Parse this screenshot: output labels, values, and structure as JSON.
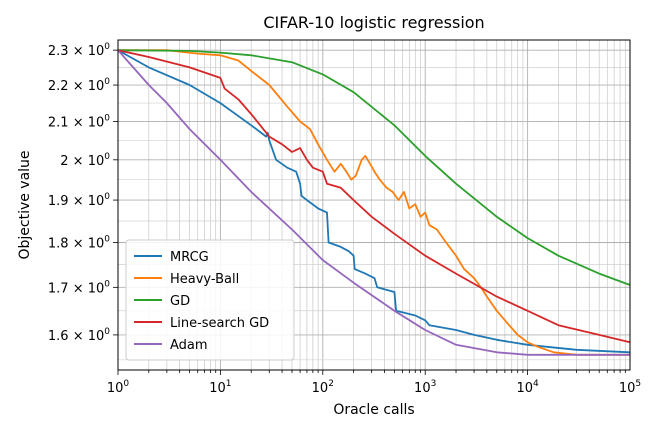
{
  "chart_data": {
    "type": "line",
    "title": "CIFAR-10 logistic regression",
    "xlabel": "Oracle calls",
    "ylabel": "Objective value",
    "xscale": "log",
    "yscale": "log",
    "xlim": [
      1,
      100000
    ],
    "ylim": [
      1.53,
      2.33
    ],
    "grid": "major and minor (both axes)",
    "legend_position": "lower-left",
    "x_ticks": [
      {
        "value": 1,
        "base": "10",
        "exp": "0"
      },
      {
        "value": 10,
        "base": "10",
        "exp": "1"
      },
      {
        "value": 100,
        "base": "10",
        "exp": "2"
      },
      {
        "value": 1000,
        "base": "10",
        "exp": "3"
      },
      {
        "value": 10000,
        "base": "10",
        "exp": "4"
      },
      {
        "value": 100000,
        "base": "10",
        "exp": "5"
      }
    ],
    "y_ticks": [
      {
        "value": 2.3,
        "mant": "2.3 × 10",
        "exp": "0"
      },
      {
        "value": 2.2,
        "mant": "2.2 × 10",
        "exp": "0"
      },
      {
        "value": 2.1,
        "mant": "2.1 × 10",
        "exp": "0"
      },
      {
        "value": 2.0,
        "mant": "2 × 10",
        "exp": "0"
      },
      {
        "value": 1.9,
        "mant": "1.9 × 10",
        "exp": "0"
      },
      {
        "value": 1.8,
        "mant": "1.8 × 10",
        "exp": "0"
      },
      {
        "value": 1.7,
        "mant": "1.7 × 10",
        "exp": "0"
      },
      {
        "value": 1.6,
        "mant": "1.6 × 10",
        "exp": "0"
      }
    ],
    "series": [
      {
        "name": "MRCG",
        "color": "#1f77b4",
        "points": [
          [
            1,
            2.3
          ],
          [
            2,
            2.25
          ],
          [
            5,
            2.2
          ],
          [
            10,
            2.15
          ],
          [
            20,
            2.09
          ],
          [
            28,
            2.06
          ],
          [
            29,
            2.07
          ],
          [
            30,
            2.05
          ],
          [
            35,
            2.0
          ],
          [
            45,
            1.98
          ],
          [
            55,
            1.97
          ],
          [
            60,
            1.94
          ],
          [
            62,
            1.91
          ],
          [
            70,
            1.9
          ],
          [
            90,
            1.88
          ],
          [
            110,
            1.87
          ],
          [
            114,
            1.8
          ],
          [
            150,
            1.79
          ],
          [
            180,
            1.78
          ],
          [
            200,
            1.77
          ],
          [
            205,
            1.74
          ],
          [
            260,
            1.73
          ],
          [
            320,
            1.72
          ],
          [
            340,
            1.7
          ],
          [
            500,
            1.69
          ],
          [
            520,
            1.65
          ],
          [
            800,
            1.64
          ],
          [
            1000,
            1.63
          ],
          [
            1100,
            1.62
          ],
          [
            2000,
            1.61
          ],
          [
            3000,
            1.6
          ],
          [
            5000,
            1.59
          ],
          [
            10000,
            1.58
          ],
          [
            30000,
            1.57
          ],
          [
            100000,
            1.565
          ]
        ]
      },
      {
        "name": "Heavy-Ball",
        "color": "#ff7f0e",
        "points": [
          [
            1,
            2.3
          ],
          [
            3,
            2.3
          ],
          [
            6,
            2.29
          ],
          [
            10,
            2.285
          ],
          [
            15,
            2.27
          ],
          [
            20,
            2.24
          ],
          [
            30,
            2.2
          ],
          [
            45,
            2.14
          ],
          [
            60,
            2.1
          ],
          [
            75,
            2.08
          ],
          [
            90,
            2.04
          ],
          [
            110,
            2.0
          ],
          [
            130,
            1.97
          ],
          [
            150,
            1.99
          ],
          [
            170,
            1.97
          ],
          [
            190,
            1.95
          ],
          [
            210,
            1.96
          ],
          [
            240,
            2.0
          ],
          [
            260,
            2.01
          ],
          [
            290,
            1.99
          ],
          [
            320,
            1.97
          ],
          [
            360,
            1.95
          ],
          [
            420,
            1.93
          ],
          [
            480,
            1.92
          ],
          [
            550,
            1.9
          ],
          [
            620,
            1.92
          ],
          [
            700,
            1.88
          ],
          [
            800,
            1.89
          ],
          [
            900,
            1.86
          ],
          [
            1000,
            1.87
          ],
          [
            1100,
            1.84
          ],
          [
            1300,
            1.83
          ],
          [
            1600,
            1.8
          ],
          [
            2000,
            1.77
          ],
          [
            2400,
            1.74
          ],
          [
            3000,
            1.72
          ],
          [
            3500,
            1.7
          ],
          [
            4000,
            1.68
          ],
          [
            5000,
            1.65
          ],
          [
            6000,
            1.63
          ],
          [
            8000,
            1.6
          ],
          [
            10000,
            1.585
          ],
          [
            13000,
            1.575
          ],
          [
            18000,
            1.565
          ],
          [
            30000,
            1.56
          ],
          [
            100000,
            1.56
          ]
        ]
      },
      {
        "name": "GD",
        "color": "#2ca02c",
        "points": [
          [
            1,
            2.3
          ],
          [
            5,
            2.298
          ],
          [
            10,
            2.293
          ],
          [
            20,
            2.285
          ],
          [
            50,
            2.265
          ],
          [
            100,
            2.23
          ],
          [
            200,
            2.18
          ],
          [
            500,
            2.09
          ],
          [
            1000,
            2.01
          ],
          [
            2000,
            1.94
          ],
          [
            5000,
            1.86
          ],
          [
            10000,
            1.81
          ],
          [
            20000,
            1.77
          ],
          [
            50000,
            1.73
          ],
          [
            100000,
            1.705
          ]
        ]
      },
      {
        "name": "Line-search GD",
        "color": "#d62728",
        "points": [
          [
            1,
            2.3
          ],
          [
            2,
            2.28
          ],
          [
            5,
            2.25
          ],
          [
            10,
            2.22
          ],
          [
            11,
            2.19
          ],
          [
            15,
            2.16
          ],
          [
            20,
            2.12
          ],
          [
            30,
            2.06
          ],
          [
            40,
            2.04
          ],
          [
            50,
            2.02
          ],
          [
            60,
            2.03
          ],
          [
            70,
            2.0
          ],
          [
            80,
            1.98
          ],
          [
            100,
            1.97
          ],
          [
            110,
            1.94
          ],
          [
            150,
            1.93
          ],
          [
            200,
            1.9
          ],
          [
            300,
            1.86
          ],
          [
            500,
            1.82
          ],
          [
            1000,
            1.77
          ],
          [
            2000,
            1.73
          ],
          [
            5000,
            1.68
          ],
          [
            10000,
            1.65
          ],
          [
            20000,
            1.62
          ],
          [
            50000,
            1.6
          ],
          [
            100000,
            1.585
          ]
        ]
      },
      {
        "name": "Adam",
        "color": "#9467bd",
        "points": [
          [
            1,
            2.3
          ],
          [
            2,
            2.2
          ],
          [
            3,
            2.15
          ],
          [
            5,
            2.08
          ],
          [
            10,
            2.0
          ],
          [
            20,
            1.92
          ],
          [
            50,
            1.83
          ],
          [
            100,
            1.76
          ],
          [
            200,
            1.71
          ],
          [
            500,
            1.65
          ],
          [
            1000,
            1.61
          ],
          [
            2000,
            1.58
          ],
          [
            5000,
            1.565
          ],
          [
            10000,
            1.56
          ],
          [
            100000,
            1.56
          ]
        ]
      }
    ]
  }
}
